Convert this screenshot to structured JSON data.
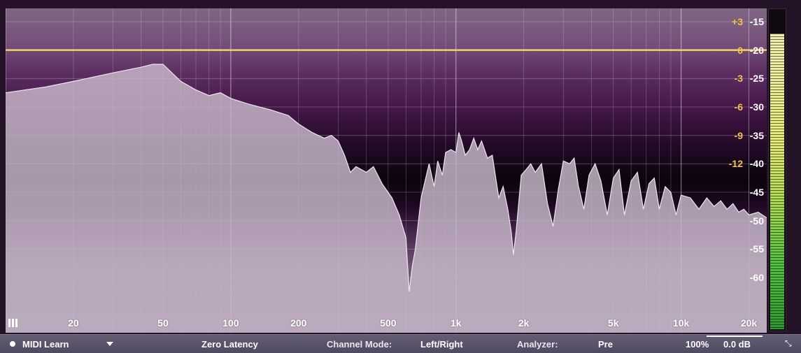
{
  "frequency_labels": [
    {
      "text": "20",
      "hz": 20
    },
    {
      "text": "50",
      "hz": 50
    },
    {
      "text": "100",
      "hz": 100
    },
    {
      "text": "200",
      "hz": 200
    },
    {
      "text": "500",
      "hz": 500
    },
    {
      "text": "1k",
      "hz": 1000
    },
    {
      "text": "2k",
      "hz": 2000
    },
    {
      "text": "5k",
      "hz": 5000
    },
    {
      "text": "10k",
      "hz": 10000
    },
    {
      "text": "20k",
      "hz": 20000
    }
  ],
  "gain_labels": [
    {
      "text": "+3",
      "db": 3
    },
    {
      "text": "0",
      "db": 0
    },
    {
      "text": "-3",
      "db": -3
    },
    {
      "text": "-6",
      "db": -6
    },
    {
      "text": "-9",
      "db": -9
    },
    {
      "text": "-12",
      "db": -12
    }
  ],
  "analyzer_labels": [
    {
      "text": "-15",
      "db": -15
    },
    {
      "text": "-20",
      "db": -20
    },
    {
      "text": "-25",
      "db": -25
    },
    {
      "text": "-30",
      "db": -30
    },
    {
      "text": "-35",
      "db": -35
    },
    {
      "text": "-40",
      "db": -40
    },
    {
      "text": "-45",
      "db": -45
    },
    {
      "text": "-50",
      "db": -50
    },
    {
      "text": "-55",
      "db": -55
    },
    {
      "text": "-60",
      "db": -60
    }
  ],
  "eq_curve_gain_db": 0,
  "spectrum_db": [
    [
      10,
      -27.5
    ],
    [
      15,
      -26.5
    ],
    [
      20,
      -25.5
    ],
    [
      30,
      -24
    ],
    [
      40,
      -23
    ],
    [
      45,
      -22.5
    ],
    [
      50,
      -22.5
    ],
    [
      60,
      -25.5
    ],
    [
      70,
      -27
    ],
    [
      80,
      -28
    ],
    [
      90,
      -27.5
    ],
    [
      100,
      -28.5
    ],
    [
      120,
      -29.5
    ],
    [
      150,
      -30.5
    ],
    [
      180,
      -31.5
    ],
    [
      200,
      -33
    ],
    [
      230,
      -34.5
    ],
    [
      260,
      -35.5
    ],
    [
      280,
      -35
    ],
    [
      300,
      -36
    ],
    [
      320,
      -38.5
    ],
    [
      340,
      -41.5
    ],
    [
      360,
      -40.5
    ],
    [
      400,
      -41.5
    ],
    [
      430,
      -40.5
    ],
    [
      470,
      -43.5
    ],
    [
      520,
      -46
    ],
    [
      560,
      -49
    ],
    [
      600,
      -53
    ],
    [
      620,
      -62.5
    ],
    [
      640,
      -58
    ],
    [
      660,
      -55
    ],
    [
      700,
      -46
    ],
    [
      760,
      -40
    ],
    [
      800,
      -44
    ],
    [
      830,
      -39.5
    ],
    [
      870,
      -42
    ],
    [
      900,
      -38
    ],
    [
      950,
      -37.5
    ],
    [
      1000,
      -38
    ],
    [
      1030,
      -34.5
    ],
    [
      1060,
      -36
    ],
    [
      1100,
      -38.5
    ],
    [
      1150,
      -37.5
    ],
    [
      1200,
      -35.5
    ],
    [
      1250,
      -37.5
    ],
    [
      1300,
      -36
    ],
    [
      1380,
      -39
    ],
    [
      1450,
      -38.5
    ],
    [
      1550,
      -46
    ],
    [
      1620,
      -44
    ],
    [
      1700,
      -48
    ],
    [
      1760,
      -52
    ],
    [
      1800,
      -56
    ],
    [
      1850,
      -52
    ],
    [
      1950,
      -42
    ],
    [
      2050,
      -41
    ],
    [
      2150,
      -40
    ],
    [
      2250,
      -41.5
    ],
    [
      2400,
      -40
    ],
    [
      2550,
      -47
    ],
    [
      2700,
      -51
    ],
    [
      2850,
      -44.5
    ],
    [
      3000,
      -39.5
    ],
    [
      3200,
      -40
    ],
    [
      3350,
      -39
    ],
    [
      3500,
      -44
    ],
    [
      3700,
      -48
    ],
    [
      3900,
      -42
    ],
    [
      4150,
      -40
    ],
    [
      4400,
      -43
    ],
    [
      4700,
      -49
    ],
    [
      5000,
      -42.5
    ],
    [
      5300,
      -41
    ],
    [
      5600,
      -49
    ],
    [
      6000,
      -43
    ],
    [
      6400,
      -41.5
    ],
    [
      6800,
      -48
    ],
    [
      7200,
      -43.5
    ],
    [
      7600,
      -42.5
    ],
    [
      8000,
      -48
    ],
    [
      8500,
      -44
    ],
    [
      9000,
      -45
    ],
    [
      9500,
      -49
    ],
    [
      10000,
      -45.5
    ],
    [
      11000,
      -46
    ],
    [
      12000,
      -48
    ],
    [
      13000,
      -46
    ],
    [
      14000,
      -47.5
    ],
    [
      15000,
      -46.5
    ],
    [
      16000,
      -48
    ],
    [
      17000,
      -47
    ],
    [
      18000,
      -48.5
    ],
    [
      19000,
      -48
    ],
    [
      20000,
      -49
    ],
    [
      22000,
      -48.5
    ],
    [
      24000,
      -49.5
    ]
  ],
  "meter_level": 0.92,
  "toolbar": {
    "midi_learn": "MIDI Learn",
    "latency": "Zero Latency",
    "channel_mode_label": "Channel Mode:",
    "channel_mode_value": "Left/Right",
    "analyzer_label": "Analyzer:",
    "analyzer_value": "Pre",
    "zoom": "100%",
    "output_gain": "0.0 dB"
  },
  "colors": {
    "spectrum_fill": "#c9b9cc",
    "spectrum_line": "#efe6f0",
    "eq_line": "#f1d36a",
    "gain_label": "#f5c24e"
  }
}
